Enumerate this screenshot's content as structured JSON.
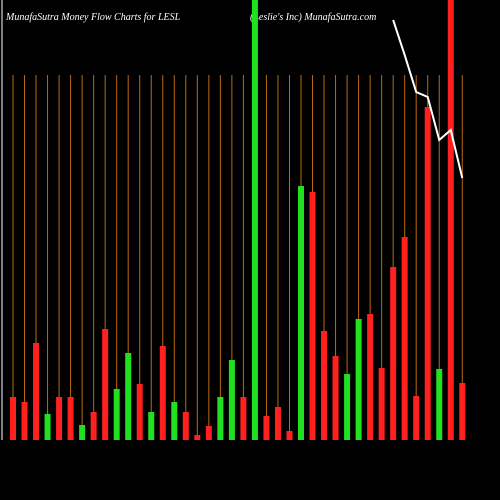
{
  "chart_data": {
    "type": "bar",
    "title": "MunafaSutra  Money Flow  Charts for LESL",
    "subtitle": "(Leslie's Inc) MunafaSutra.com",
    "categories": [
      null,
      null,
      null,
      null,
      null,
      null,
      null,
      null,
      null,
      null,
      null,
      null,
      null,
      null,
      null,
      null,
      null,
      null,
      null,
      null,
      null,
      null,
      null,
      null,
      null,
      null,
      null,
      null,
      null,
      null,
      null,
      null,
      null,
      null,
      null,
      null,
      null,
      null,
      null,
      null
    ],
    "values": [
      43,
      38,
      97,
      26,
      43,
      43,
      15,
      28,
      111,
      51,
      87,
      56,
      28,
      94,
      38,
      28,
      5,
      14,
      43,
      80,
      43,
      440,
      24,
      33,
      9,
      254,
      248,
      109,
      84,
      66,
      121,
      126,
      72,
      173,
      203,
      44,
      333,
      71,
      440,
      57
    ],
    "colors": [
      "#ff2020",
      "#ff2020",
      "#ff2020",
      "#20e020",
      "#ff2020",
      "#ff2020",
      "#20e020",
      "#ff2020",
      "#ff2020",
      "#20e020",
      "#20e020",
      "#ff2020",
      "#20e020",
      "#ff2020",
      "#20e020",
      "#ff2020",
      "#ff2020",
      "#ff2020",
      "#20e020",
      "#20e020",
      "#ff2020",
      "#20e020",
      "#ff2020",
      "#ff2020",
      "#ff2020",
      "#20e020",
      "#ff2020",
      "#ff2020",
      "#ff2020",
      "#20e020",
      "#20e020",
      "#ff2020",
      "#ff2020",
      "#ff2020",
      "#ff2020",
      "#ff2020",
      "#ff2020",
      "#20e020",
      "#ff2020",
      "#ff2020"
    ],
    "line": {
      "color": "#ffffff",
      "values": [
        null,
        null,
        null,
        null,
        null,
        null,
        null,
        null,
        null,
        null,
        null,
        null,
        null,
        null,
        null,
        null,
        null,
        null,
        null,
        null,
        null,
        null,
        null,
        null,
        null,
        null,
        null,
        null,
        null,
        null,
        null,
        null,
        null,
        420,
        385,
        348,
        343,
        300,
        310,
        262
      ]
    },
    "ylim": [
      0,
      440
    ],
    "grid": true,
    "grid_color": "#b86a10"
  }
}
